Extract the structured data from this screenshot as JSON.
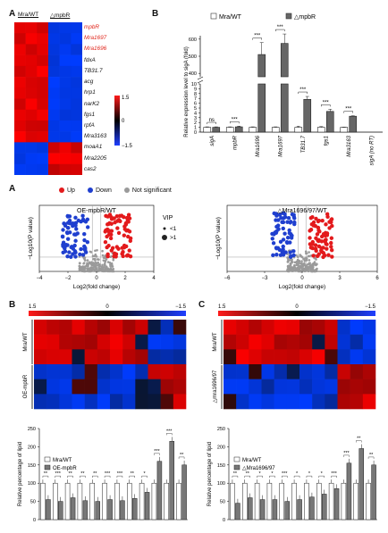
{
  "top": {
    "panel_a": {
      "letter": "A",
      "col_labels": [
        "Mra/WT",
        "△mpbR"
      ],
      "genes": [
        {
          "name": "mpbR",
          "highlight": true
        },
        {
          "name": "Mra1697",
          "highlight": true
        },
        {
          "name": "Mra1696",
          "highlight": true
        },
        {
          "name": "fdxA",
          "highlight": false
        },
        {
          "name": "TB31.7",
          "highlight": false
        },
        {
          "name": "acg",
          "highlight": false
        },
        {
          "name": "hrp1",
          "highlight": false
        },
        {
          "name": "narK2",
          "highlight": false
        },
        {
          "name": "fgs1",
          "highlight": false
        },
        {
          "name": "rpfA",
          "highlight": false
        },
        {
          "name": "Mra3163",
          "highlight": false
        },
        {
          "name": "moaA1",
          "highlight": false
        },
        {
          "name": "Mra2205",
          "highlight": false
        },
        {
          "name": "cas2",
          "highlight": false
        }
      ],
      "scale": {
        "max": "1.5",
        "mid": "0",
        "min": "−1.5"
      },
      "colors": {
        "red": "#e8141b",
        "blue": "#1f3fd6",
        "black": "#000000"
      }
    },
    "panel_b": {
      "letter": "B",
      "legend": [
        "Mra/WT",
        "△mpbR"
      ],
      "ylabel": "Relative expression level to sigA (fold)",
      "yticks": [
        "0",
        "1",
        "2",
        "3",
        "4",
        "5",
        "6",
        "7",
        "8",
        "9",
        "10",
        "400",
        "500",
        "600"
      ],
      "categories": [
        "sigA",
        "mpbR",
        "Mra1696",
        "Mra1697",
        "TB31.7",
        "fgs1",
        "Mra3163",
        "sigA (no RT)"
      ],
      "sig": [
        "ns",
        "***",
        "***",
        "***",
        "***",
        "***",
        "***"
      ]
    }
  },
  "chart_data": {
    "type": "bar",
    "title": "",
    "ylabel": "Relative expression level to sigA (fold)",
    "axis_break": [
      10,
      380
    ],
    "categories": [
      "sigA",
      "mpbR",
      "Mra1696",
      "Mra1697",
      "TB31.7",
      "fgs1",
      "Mra3163",
      "sigA (no RT)"
    ],
    "series": [
      {
        "name": "Mra/WT",
        "values": [
          1.0,
          1.0,
          1.0,
          1.0,
          1.0,
          1.0,
          1.0,
          0
        ]
      },
      {
        "name": "△mpbR",
        "values": [
          1.0,
          1.1,
          510,
          575,
          6.8,
          4.3,
          3.3,
          0
        ]
      }
    ]
  },
  "bottom": {
    "panel_a": {
      "letter": "A",
      "legend": [
        {
          "label": "Up",
          "color": "#e31a1c"
        },
        {
          "label": "Down",
          "color": "#1f3fcf"
        },
        {
          "label": "Not significant",
          "color": "#9a9a9a"
        }
      ],
      "left_title": "OE-mpbR/WT",
      "right_title": "△Mra1696/97/WT",
      "vip_label": "VIP",
      "vip_items": [
        "<1",
        ">1"
      ],
      "ylabel": "−Log10(P value)",
      "xlabel": "Log2(fold change)",
      "left_xticks": [
        "−4",
        "−2",
        "0",
        "2",
        "4"
      ],
      "right_xticks": [
        "−6",
        "−3",
        "0",
        "3",
        "6"
      ]
    },
    "panel_b": {
      "letter": "B",
      "scale": [
        "1.5",
        "0",
        "−1.5"
      ],
      "row_labels": [
        "Mra/WT",
        "OE-mpbR"
      ],
      "legend": [
        "Mra/WT",
        "OE-mpbR"
      ],
      "ylabel": "Relative percentage of lipid",
      "yticks": [
        "0",
        "50",
        "100",
        "150",
        "200",
        "250"
      ],
      "sig": [
        "**",
        "***",
        "**",
        "**",
        "**",
        "***",
        "***",
        "**",
        "*",
        "***",
        "***",
        "**"
      ]
    },
    "panel_c": {
      "letter": "C",
      "scale": [
        "1.5",
        "0",
        "−1.5"
      ],
      "row_labels": [
        "Mra/WT",
        "△mra1696/97"
      ],
      "legend": [
        "Mra/WT",
        "△Mra1696/97"
      ],
      "ylabel": "Relative percentage of lipid",
      "yticks": [
        "0",
        "50",
        "100",
        "150",
        "200",
        "250"
      ],
      "sig": [
        "**",
        "**",
        "*",
        "*",
        "***",
        "*",
        "*",
        "*",
        "***",
        "***",
        "**",
        "**"
      ]
    }
  },
  "lipid_data": {
    "b": {
      "wt": [
        100,
        100,
        100,
        100,
        100,
        100,
        100,
        100,
        100,
        100,
        100,
        100
      ],
      "mut": [
        55,
        50,
        60,
        52,
        50,
        55,
        52,
        58,
        75,
        160,
        215,
        150
      ]
    },
    "c": {
      "wt": [
        100,
        100,
        100,
        100,
        100,
        100,
        100,
        100,
        100,
        100,
        100,
        100
      ],
      "mut": [
        45,
        60,
        55,
        55,
        50,
        55,
        62,
        70,
        85,
        155,
        195,
        150
      ]
    }
  }
}
